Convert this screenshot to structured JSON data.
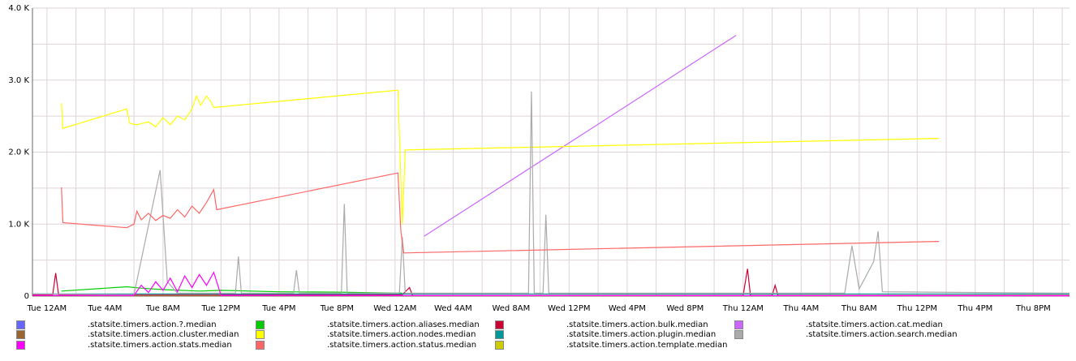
{
  "chart_data": {
    "type": "line",
    "title": "",
    "xlabel": "",
    "ylabel": "",
    "x_ticks": [
      "Tue 12AM",
      "Tue 4AM",
      "Tue 8AM",
      "Tue 12PM",
      "Tue 4PM",
      "Tue 8PM",
      "Wed 12AM",
      "Wed 4AM",
      "Wed 8AM",
      "Wed 12PM",
      "Wed 4PM",
      "Wed 8PM",
      "Thu 12AM",
      "Thu 4AM",
      "Thu 8AM",
      "Thu 12PM",
      "Thu 4PM",
      "Thu 8PM"
    ],
    "x_unit": "hours since Tue 12AM",
    "xlim": [
      -1,
      70.5
    ],
    "y_ticks": [
      "0",
      "1.0 K",
      "2.0 K",
      "3.0 K",
      "4.0 K"
    ],
    "y_tick_values": [
      0,
      1000,
      2000,
      3000,
      4000
    ],
    "ylim": [
      0,
      4000
    ],
    "grid": true,
    "legend_position": "bottom",
    "series": [
      {
        "name": ".statsite.timers.action.?.median",
        "color": "#6666ff",
        "points": []
      },
      {
        "name": ".statsite.timers.action.aliases.median",
        "color": "#00cc00",
        "points": [
          [
            1,
            70
          ],
          [
            5.5,
            130
          ],
          [
            6.5,
            110
          ],
          [
            8,
            90
          ],
          [
            10.5,
            70
          ],
          [
            12,
            80
          ],
          [
            16,
            60
          ],
          [
            20,
            55
          ],
          [
            23,
            45
          ],
          [
            24.5,
            40
          ]
        ]
      },
      {
        "name": ".statsite.timers.action.bulk.median",
        "color": "#cc0033",
        "points": [
          [
            -1,
            20
          ],
          [
            0.4,
            20
          ],
          [
            0.6,
            320
          ],
          [
            0.8,
            20
          ],
          [
            24.5,
            20
          ],
          [
            25,
            120
          ],
          [
            25.2,
            10
          ],
          [
            48,
            10
          ],
          [
            48.3,
            380
          ],
          [
            48.5,
            10
          ],
          [
            50,
            10
          ],
          [
            50.2,
            150
          ],
          [
            50.4,
            10
          ],
          [
            70.5,
            10
          ]
        ]
      },
      {
        "name": ".statsite.timers.action.cat.median",
        "color": "#cc66ff",
        "points": [
          [
            26,
            830
          ],
          [
            47.5,
            3620
          ]
        ]
      },
      {
        "name": ".statsite.timers.action.cluster.median",
        "color": "#996633",
        "points": [
          [
            -1,
            5
          ],
          [
            70.5,
            5
          ]
        ]
      },
      {
        "name": ".statsite.timers.action.nodes.median",
        "color": "#ffff00",
        "points": [
          [
            1,
            2680
          ],
          [
            1.1,
            2330
          ],
          [
            5.5,
            2600
          ],
          [
            5.7,
            2400
          ],
          [
            6.2,
            2380
          ],
          [
            7,
            2420
          ],
          [
            7.5,
            2350
          ],
          [
            8,
            2480
          ],
          [
            8.5,
            2380
          ],
          [
            9,
            2500
          ],
          [
            9.5,
            2450
          ],
          [
            10,
            2600
          ],
          [
            10.3,
            2780
          ],
          [
            10.6,
            2650
          ],
          [
            11,
            2780
          ],
          [
            11.3,
            2700
          ],
          [
            11.5,
            2620
          ],
          [
            24.2,
            2860
          ],
          [
            24.5,
            1000
          ],
          [
            24.7,
            2030
          ],
          [
            61.5,
            2190
          ]
        ]
      },
      {
        "name": ".statsite.timers.action.plugin.median",
        "color": "#009999",
        "points": [
          [
            -1,
            30
          ],
          [
            70.5,
            30
          ]
        ]
      },
      {
        "name": ".statsite.timers.action.search.median",
        "color": "#aaaaaa",
        "points": [
          [
            -1,
            30
          ],
          [
            6,
            20
          ],
          [
            7.8,
            1750
          ],
          [
            8.3,
            200
          ],
          [
            9,
            40
          ],
          [
            13,
            40
          ],
          [
            13.2,
            550
          ],
          [
            13.4,
            40
          ],
          [
            17,
            40
          ],
          [
            17.2,
            360
          ],
          [
            17.4,
            40
          ],
          [
            20.3,
            40
          ],
          [
            20.5,
            1280
          ],
          [
            20.7,
            40
          ],
          [
            24.3,
            40
          ],
          [
            24.5,
            820
          ],
          [
            24.7,
            40
          ],
          [
            33.2,
            40
          ],
          [
            33.4,
            2840
          ],
          [
            33.6,
            40
          ],
          [
            34.2,
            40
          ],
          [
            34.4,
            1130
          ],
          [
            34.6,
            40
          ],
          [
            55,
            40
          ],
          [
            55.5,
            700
          ],
          [
            56,
            100
          ],
          [
            57,
            480
          ],
          [
            57.3,
            900
          ],
          [
            57.6,
            60
          ],
          [
            70.5,
            40
          ]
        ]
      },
      {
        "name": ".statsite.timers.action.stats.median",
        "color": "#ff00ff",
        "points": [
          [
            -1,
            10
          ],
          [
            6,
            10
          ],
          [
            6.5,
            150
          ],
          [
            7,
            50
          ],
          [
            7.5,
            200
          ],
          [
            8,
            80
          ],
          [
            8.5,
            250
          ],
          [
            9,
            60
          ],
          [
            9.5,
            280
          ],
          [
            10,
            120
          ],
          [
            10.5,
            300
          ],
          [
            11,
            150
          ],
          [
            11.5,
            330
          ],
          [
            12,
            10
          ],
          [
            70.5,
            5
          ]
        ]
      },
      {
        "name": ".statsite.timers.action.status.median",
        "color": "#ff6666",
        "points": [
          [
            1,
            1510
          ],
          [
            1.1,
            1020
          ],
          [
            5.5,
            950
          ],
          [
            6,
            1000
          ],
          [
            6.2,
            1180
          ],
          [
            6.5,
            1060
          ],
          [
            7,
            1150
          ],
          [
            7.5,
            1050
          ],
          [
            8,
            1120
          ],
          [
            8.5,
            1080
          ],
          [
            9,
            1200
          ],
          [
            9.5,
            1100
          ],
          [
            10,
            1250
          ],
          [
            10.5,
            1150
          ],
          [
            11,
            1300
          ],
          [
            11.5,
            1480
          ],
          [
            11.7,
            1200
          ],
          [
            24.2,
            1710
          ],
          [
            24.4,
            900
          ],
          [
            24.6,
            600
          ],
          [
            61.5,
            760
          ]
        ]
      },
      {
        "name": ".statsite.timers.action.template.median",
        "color": "#cccc00",
        "points": []
      }
    ]
  }
}
